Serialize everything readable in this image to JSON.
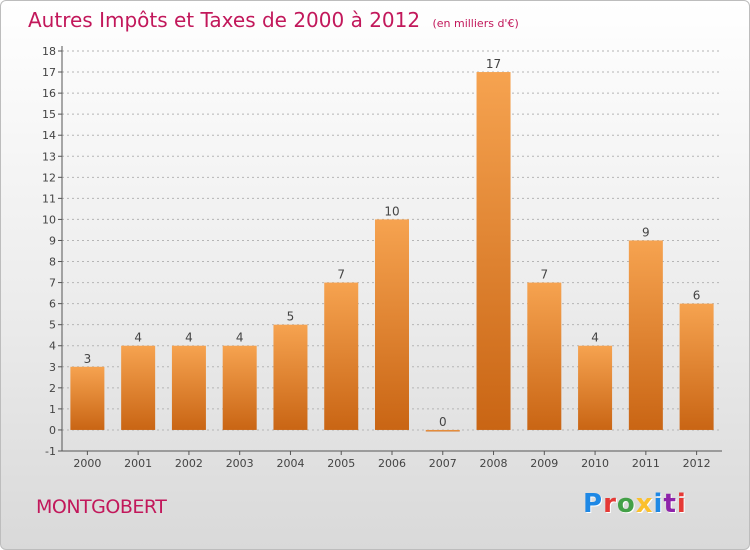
{
  "header": {
    "title": "Autres Impôts et Taxes de 2000 à 2012",
    "unit": "(en milliers d'€)"
  },
  "footer": {
    "city": "MONTGOBERT",
    "logo": "Proxiti",
    "logo_colors": [
      "#1e88e5",
      "#e53935",
      "#43a047",
      "#fbc02d",
      "#1e88e5",
      "#8e24aa",
      "#e53935"
    ]
  },
  "colors": {
    "bar_light": "#f6a350",
    "bar_dark": "#c96514",
    "axis": "#555555",
    "grid": "#b5b5b5"
  },
  "chart_data": {
    "type": "bar",
    "title": "Autres Impôts et Taxes de 2000 à 2012",
    "categories": [
      "2000",
      "2001",
      "2002",
      "2003",
      "2004",
      "2005",
      "2006",
      "2007",
      "2008",
      "2009",
      "2010",
      "2011",
      "2012"
    ],
    "values": [
      3,
      4,
      4,
      4,
      5,
      7,
      10,
      0,
      17,
      7,
      4,
      9,
      6
    ],
    "ylim": [
      -1,
      18
    ],
    "yticks": [
      -1,
      0,
      1,
      2,
      3,
      4,
      5,
      6,
      7,
      8,
      9,
      10,
      11,
      12,
      13,
      14,
      15,
      16,
      17,
      18
    ],
    "grid": true
  }
}
